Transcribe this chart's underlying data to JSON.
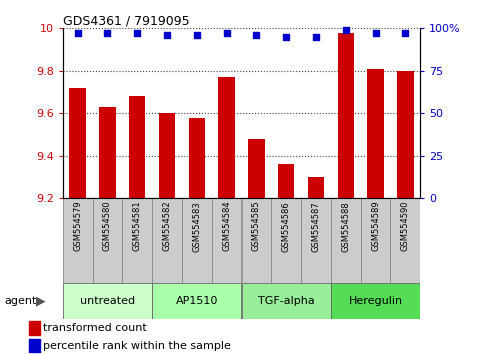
{
  "title": "GDS4361 / 7919095",
  "samples": [
    "GSM554579",
    "GSM554580",
    "GSM554581",
    "GSM554582",
    "GSM554583",
    "GSM554584",
    "GSM554585",
    "GSM554586",
    "GSM554587",
    "GSM554588",
    "GSM554589",
    "GSM554590"
  ],
  "bar_values": [
    9.72,
    9.63,
    9.68,
    9.6,
    9.58,
    9.77,
    9.48,
    9.36,
    9.3,
    9.98,
    9.81,
    9.8
  ],
  "percentile_values": [
    97,
    97,
    97,
    96,
    96,
    97,
    96,
    95,
    95,
    99,
    97,
    97
  ],
  "bar_color": "#cc0000",
  "percentile_color": "#0000cc",
  "ylim_left": [
    9.2,
    10.0
  ],
  "ylim_right": [
    0,
    100
  ],
  "yticks_left": [
    9.2,
    9.4,
    9.6,
    9.8,
    10.0
  ],
  "ytick_labels_left": [
    "9.2",
    "9.4",
    "9.6",
    "9.8",
    "10"
  ],
  "yticks_right": [
    0,
    25,
    50,
    75,
    100
  ],
  "ytick_labels_right": [
    "0",
    "25",
    "50",
    "75",
    "100%"
  ],
  "groups": [
    {
      "label": "untreated",
      "start": 0,
      "end": 3,
      "color": "#ccffcc"
    },
    {
      "label": "AP1510",
      "start": 3,
      "end": 6,
      "color": "#aaffaa"
    },
    {
      "label": "TGF-alpha",
      "start": 6,
      "end": 9,
      "color": "#99ee99"
    },
    {
      "label": "Heregulin",
      "start": 9,
      "end": 12,
      "color": "#55dd55"
    }
  ],
  "legend_bar_label": "transformed count",
  "legend_pct_label": "percentile rank within the sample",
  "agent_label": "agent",
  "background_color": "#ffffff",
  "plot_bg_color": "#ffffff",
  "grid_color": "#888888",
  "sample_box_color": "#cccccc"
}
